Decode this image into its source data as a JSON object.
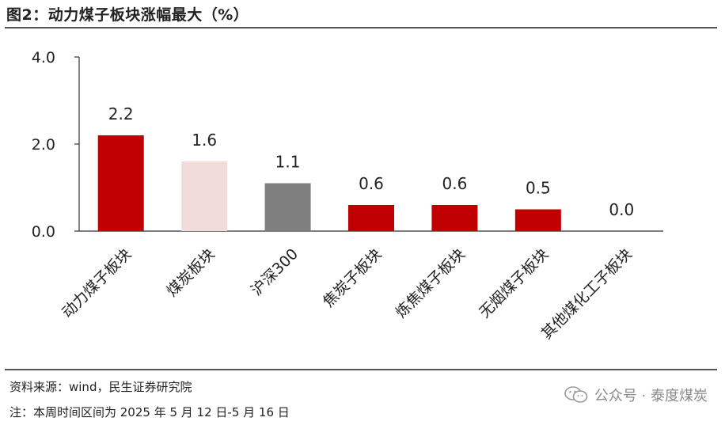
{
  "title": "图2：动力煤子板块涨幅最大（%）",
  "footer": {
    "source": "资料来源：wind，民生证券研究院",
    "note": "注：本周时间区间为 2025 年 5 月 12 日-5 月 16 日"
  },
  "watermark": {
    "text": "公众号 · 泰度煤炭",
    "icon": "wechat-icon"
  },
  "colors": {
    "red": "#C00000",
    "pink": "#F2DCDB",
    "gray": "#7F7F7F"
  },
  "chart_data": {
    "type": "bar",
    "categories": [
      "动力煤子板块",
      "煤炭板块",
      "沪深300",
      "焦炭子板块",
      "炼焦煤子板块",
      "无烟煤子板块",
      "其他煤化工子板块"
    ],
    "values": [
      2.2,
      1.6,
      1.1,
      0.6,
      0.6,
      0.5,
      0.0
    ],
    "data_labels": [
      "2.2",
      "1.6",
      "1.1",
      "0.6",
      "0.6",
      "0.5",
      "0.0"
    ],
    "bar_colors": [
      "#C00000",
      "#F2DCDB",
      "#7F7F7F",
      "#C00000",
      "#C00000",
      "#C00000",
      "#C00000"
    ],
    "ylim": [
      0,
      4
    ],
    "yticks": [
      0,
      2,
      4
    ],
    "ytick_labels": [
      "0.0",
      "2.0",
      "4.0"
    ],
    "grid": false,
    "xlabel": "",
    "ylabel": ""
  }
}
